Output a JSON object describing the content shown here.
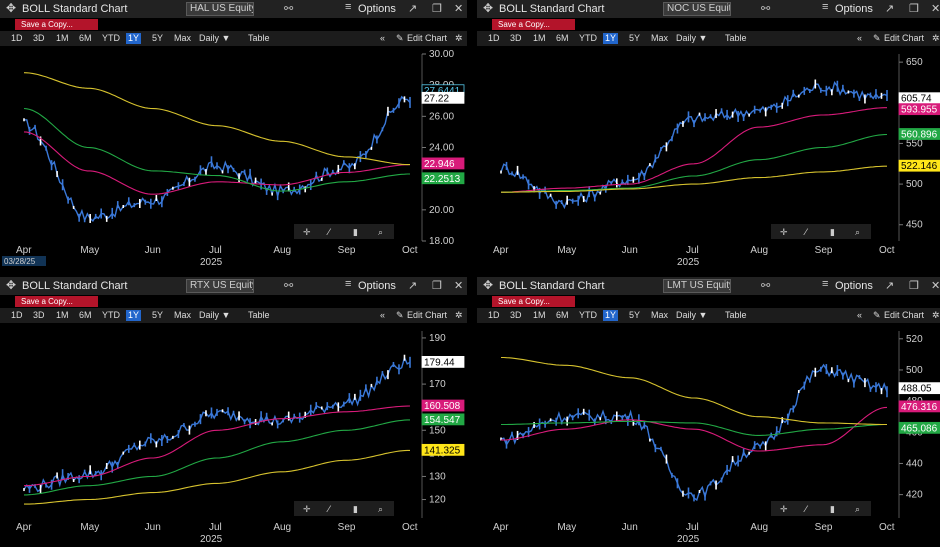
{
  "app": {
    "title_label": "BOLL Standard Chart",
    "save_label": "Save a Copy...",
    "options_label": "Options",
    "edit_chart_label": "Edit Chart",
    "table_label": "Table",
    "period_label": "Daily ▼",
    "ranges": [
      "1D",
      "3D",
      "1M",
      "6M",
      "YTD",
      "1Y",
      "5Y",
      "Max"
    ],
    "active_range": "1Y",
    "icons": [
      "gear-icon",
      "link-icon",
      "expand-icon",
      "window-icon",
      "close-icon",
      "collapse-icon",
      "pencil-icon",
      "crosshair-icon",
      "draw-icon",
      "chart-type-icon",
      "zoom-icon"
    ],
    "colors": {
      "price": "#3a78d8",
      "upper": "#d81b7a",
      "middle": "#22a845",
      "lower": "#d6c22e",
      "active_tab": "#2266cc",
      "save": "#b3142a"
    }
  },
  "panels": [
    {
      "ticker": "HAL US Equity",
      "x_months": [
        "Apr",
        "May",
        "Jun",
        "Jul",
        "Aug",
        "Sep",
        "Oct"
      ],
      "x_year": "2025",
      "date_label": "03/28/25",
      "y_ticks": [
        "30.00",
        "28.00",
        "26.00",
        "24.00",
        "22.00",
        "20.00",
        "18.00"
      ],
      "tags": [
        {
          "text": "27.6441",
          "bg": "#000000",
          "fg": "#56c6e8",
          "border": "#56c6e8"
        },
        {
          "text": "27.22",
          "bg": "#ffffff",
          "fg": "#000000",
          "border": "#ffffff"
        },
        {
          "text": "22.946",
          "bg": "#d81b7a",
          "fg": "#ffffff",
          "border": "#d81b7a"
        },
        {
          "text": "22.2513",
          "bg": "#22a845",
          "fg": "#ffffff",
          "border": "#22a845"
        }
      ],
      "chart_data": {
        "type": "line",
        "x": [
          "Apr",
          "May",
          "Jun",
          "Jul",
          "Aug",
          "Sep",
          "Oct"
        ],
        "ylim": [
          18,
          30
        ],
        "series": [
          {
            "name": "price",
            "values": [
              25.5,
              19.5,
              20.6,
              22.8,
              21.2,
              22.7,
              27.2
            ]
          },
          {
            "name": "upper",
            "values": [
              25.0,
              22.5,
              21.0,
              21.8,
              21.6,
              22.4,
              22.9
            ]
          },
          {
            "name": "middle",
            "values": [
              26.5,
              24.0,
              22.5,
              22.2,
              21.2,
              21.8,
              22.3
            ]
          },
          {
            "name": "lower",
            "values": [
              28.8,
              27.8,
              26.5,
              25.4,
              24.4,
              23.4,
              22.9
            ]
          }
        ]
      }
    },
    {
      "ticker": "NOC US Equity",
      "x_months": [
        "Apr",
        "May",
        "Jun",
        "Jul",
        "Aug",
        "Sep",
        "Oct"
      ],
      "x_year": "2025",
      "date_label": "",
      "y_ticks": [
        "650",
        "600",
        "550",
        "500",
        "450"
      ],
      "tags": [
        {
          "text": "605.74",
          "bg": "#ffffff",
          "fg": "#000000",
          "border": "#ffffff"
        },
        {
          "text": "593.955",
          "bg": "#d81b7a",
          "fg": "#ffffff",
          "border": "#d81b7a"
        },
        {
          "text": "560.896",
          "bg": "#22a845",
          "fg": "#ffffff",
          "border": "#22a845"
        },
        {
          "text": "522.146",
          "bg": "#ffe619",
          "fg": "#000000",
          "border": "#ffe619"
        }
      ],
      "chart_data": {
        "type": "line",
        "x": [
          "Apr",
          "May",
          "Jun",
          "Jul",
          "Aug",
          "Sep",
          "Oct"
        ],
        "ylim": [
          430,
          660
        ],
        "series": [
          {
            "name": "price",
            "values": [
              520,
              478,
              505,
              580,
              590,
              620,
              605
            ]
          },
          {
            "name": "upper",
            "values": [
              490,
              495,
              500,
              525,
              570,
              585,
              594
            ]
          },
          {
            "name": "middle",
            "values": [
              490,
              492,
              495,
              510,
              530,
              545,
              561
            ]
          },
          {
            "name": "lower",
            "values": [
              490,
              491,
              494,
              500,
              508,
              515,
              522
            ]
          }
        ]
      }
    },
    {
      "ticker": "RTX US Equity",
      "x_months": [
        "Apr",
        "May",
        "Jun",
        "Jul",
        "Aug",
        "Sep",
        "Oct"
      ],
      "x_year": "2025",
      "date_label": "",
      "y_ticks": [
        "190",
        "180",
        "170",
        "160",
        "150",
        "140",
        "130",
        "120"
      ],
      "tags": [
        {
          "text": "179.44",
          "bg": "#ffffff",
          "fg": "#000000",
          "border": "#ffffff"
        },
        {
          "text": "160.508",
          "bg": "#d81b7a",
          "fg": "#ffffff",
          "border": "#d81b7a"
        },
        {
          "text": "154.547",
          "bg": "#22a845",
          "fg": "#ffffff",
          "border": "#22a845"
        },
        {
          "text": "141.325",
          "bg": "#ffe619",
          "fg": "#000000",
          "border": "#ffe619"
        }
      ],
      "chart_data": {
        "type": "line",
        "x": [
          "Apr",
          "May",
          "Jun",
          "Jul",
          "Aug",
          "Sep",
          "Oct"
        ],
        "ylim": [
          112,
          193
        ],
        "series": [
          {
            "name": "price",
            "values": [
              125,
              131,
              145,
              157,
              154,
              162,
              179.4
            ]
          },
          {
            "name": "upper",
            "values": [
              126,
              130,
              138,
              150,
              155,
              158,
              160.5
            ]
          },
          {
            "name": "middle",
            "values": [
              122,
              126,
              130,
              138,
              145,
              150,
              154.5
            ]
          },
          {
            "name": "lower",
            "values": [
              118,
              120,
              123,
              127,
              132,
              137,
              141.3
            ]
          }
        ]
      }
    },
    {
      "ticker": "LMT US Equity",
      "x_months": [
        "Apr",
        "May",
        "Jun",
        "Jul",
        "Aug",
        "Sep",
        "Oct"
      ],
      "x_year": "2025",
      "date_label": "",
      "y_ticks": [
        "520",
        "500",
        "480",
        "460",
        "440",
        "420"
      ],
      "tags": [
        {
          "text": "488.05",
          "bg": "#ffffff",
          "fg": "#000000",
          "border": "#ffffff"
        },
        {
          "text": "476.316",
          "bg": "#d81b7a",
          "fg": "#ffffff",
          "border": "#d81b7a"
        },
        {
          "text": "465.086",
          "bg": "#22a845",
          "fg": "#ffffff",
          "border": "#22a845"
        }
      ],
      "chart_data": {
        "type": "line",
        "x": [
          "Apr",
          "May",
          "Jun",
          "Jul",
          "Aug",
          "Sep",
          "Oct"
        ],
        "ylim": [
          405,
          525
        ],
        "series": [
          {
            "name": "price",
            "values": [
              455,
              470,
              470,
              420,
              450,
              500,
              488
            ]
          },
          {
            "name": "upper",
            "values": [
              455,
              462,
              468,
              462,
              448,
              452,
              476
            ]
          },
          {
            "name": "middle",
            "values": [
              465,
              466,
              467,
              466,
              458,
              462,
              465
            ]
          },
          {
            "name": "lower",
            "values": [
              508,
              503,
              495,
              482,
              470,
              466,
              465
            ]
          }
        ]
      }
    }
  ]
}
